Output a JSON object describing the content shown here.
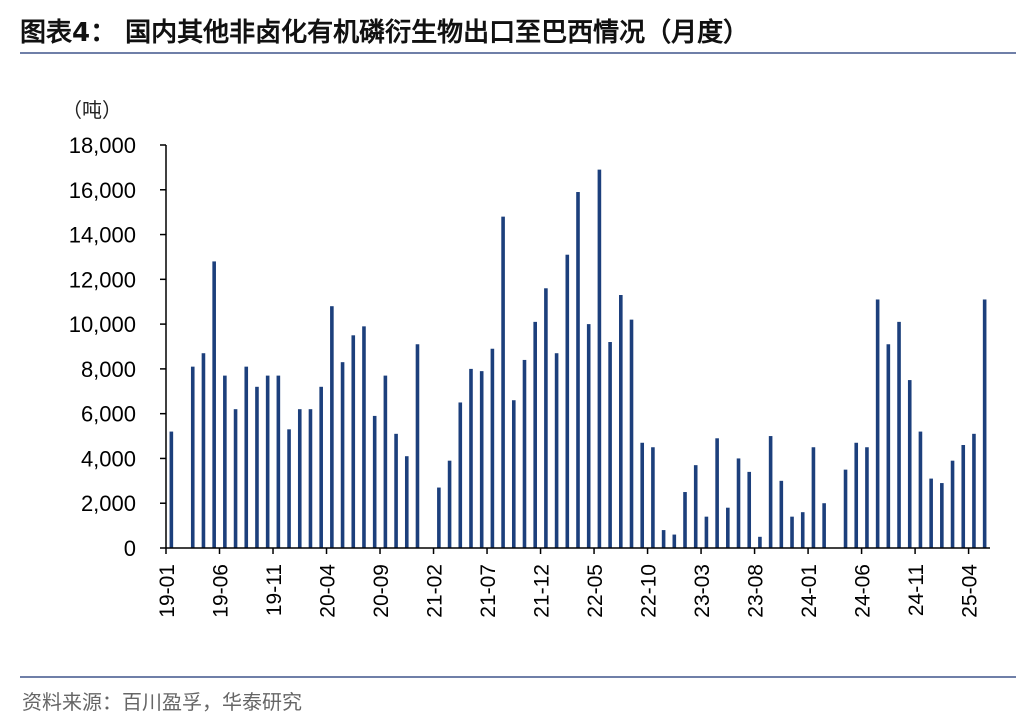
{
  "title": "图表4：  国内其他非卤化有机磷衍生物出口至巴西情况（月度）",
  "unit_label": "（吨）",
  "source": "资料来源：百川盈孚，华泰研究",
  "chart_data": {
    "type": "bar",
    "title": "国内其他非卤化有机磷衍生物出口至巴西情况（月度）",
    "ylabel": "吨",
    "xlabel": "",
    "ylim": [
      0,
      18000
    ],
    "yticks": [
      0,
      2000,
      4000,
      6000,
      8000,
      10000,
      12000,
      14000,
      16000,
      18000
    ],
    "ytick_labels": [
      "0",
      "2,000",
      "4,000",
      "6,000",
      "8,000",
      "10,000",
      "12,000",
      "14,000",
      "16,000",
      "18,000"
    ],
    "xtick_labels": [
      "19-01",
      "19-06",
      "19-11",
      "20-04",
      "20-09",
      "21-02",
      "21-07",
      "21-12",
      "22-05",
      "22-10",
      "23-03",
      "23-08",
      "24-01",
      "24-06",
      "24-11",
      "25-04"
    ],
    "bar_color": "#1c3f7c",
    "categories": [
      "19-01",
      "19-02",
      "19-03",
      "19-04",
      "19-05",
      "19-06",
      "19-07",
      "19-08",
      "19-09",
      "19-10",
      "19-11",
      "19-12",
      "20-01",
      "20-02",
      "20-03",
      "20-04",
      "20-05",
      "20-06",
      "20-07",
      "20-08",
      "20-09",
      "20-10",
      "20-11",
      "20-12",
      "21-01",
      "21-02",
      "21-03",
      "21-04",
      "21-05",
      "21-06",
      "21-07",
      "21-08",
      "21-09",
      "21-10",
      "21-11",
      "21-12",
      "22-01",
      "22-02",
      "22-03",
      "22-04",
      "22-05",
      "22-06",
      "22-07",
      "22-08",
      "22-09",
      "22-10",
      "22-11",
      "22-12",
      "23-01",
      "23-02",
      "23-03",
      "23-04",
      "23-05",
      "23-06",
      "23-07",
      "23-08",
      "23-09",
      "23-10",
      "23-11",
      "23-12",
      "24-01",
      "24-02",
      "24-03",
      "24-04",
      "24-05",
      "24-06",
      "24-07",
      "24-08",
      "24-09",
      "24-10",
      "24-11",
      "24-12",
      "25-01",
      "25-02",
      "25-03",
      "25-04",
      "25-05"
    ],
    "values": [
      5200,
      0,
      8100,
      8700,
      12800,
      7700,
      6200,
      8100,
      7200,
      7700,
      7700,
      5300,
      6200,
      6200,
      7200,
      10800,
      8300,
      9500,
      9900,
      5900,
      7700,
      5100,
      4100,
      9100,
      0,
      2700,
      3900,
      6500,
      8000,
      7900,
      8900,
      14800,
      6600,
      8400,
      10100,
      11600,
      8700,
      13100,
      15900,
      10000,
      16900,
      9200,
      11300,
      10200,
      4700,
      4500,
      800,
      600,
      2500,
      3700,
      1400,
      4900,
      1800,
      4000,
      3400,
      500,
      5000,
      3000,
      1400,
      1600,
      4500,
      2000,
      0,
      3500,
      4700,
      4500,
      11100,
      9100,
      10100,
      7500,
      5200,
      3100,
      2900,
      3900,
      4600,
      5100,
      11100
    ]
  }
}
